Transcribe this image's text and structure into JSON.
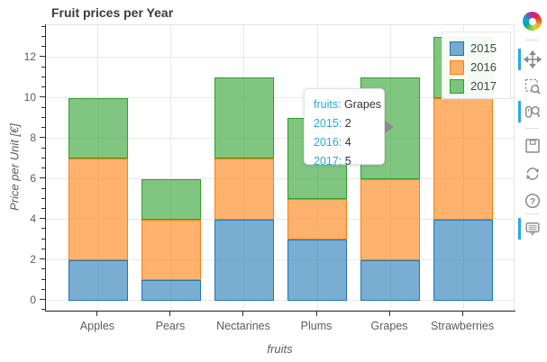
{
  "title": "Fruit prices per Year",
  "chart_data": {
    "type": "bar",
    "stacked": true,
    "title": "Fruit prices per Year",
    "xlabel": "fruits",
    "ylabel": "Price per Unit [€]",
    "categories": [
      "Apples",
      "Pears",
      "Nectarines",
      "Plums",
      "Grapes",
      "Strawberries"
    ],
    "series": [
      {
        "name": "2015",
        "values": [
          2,
          1,
          4,
          3,
          2,
          4
        ],
        "fill": "rgba(31,119,180,0.6)",
        "line": "#1f77b4"
      },
      {
        "name": "2016",
        "values": [
          5,
          3,
          3,
          2,
          4,
          6
        ],
        "fill": "rgba(255,127,14,0.6)",
        "line": "#ff7f0e"
      },
      {
        "name": "2017",
        "values": [
          3,
          2,
          4,
          4,
          5,
          3
        ],
        "fill": "rgba(44,160,44,0.6)",
        "line": "#2ca02c"
      }
    ],
    "ylim": [
      -0.55,
      13.6
    ],
    "ytick_step": 2,
    "yminor_step": 0.5,
    "yticks": [
      0,
      2,
      4,
      6,
      8,
      10,
      12
    ],
    "grid": true,
    "legend_position": "top_right",
    "bar_width": 0.82,
    "x_edge_pad": 0.715
  },
  "tooltip": {
    "rows": [
      {
        "label": "fruits:",
        "value": "Grapes"
      },
      {
        "label": "2015:",
        "value": "2"
      },
      {
        "label": "2016:",
        "value": "4"
      },
      {
        "label": "2017:",
        "value": "5"
      }
    ],
    "label_color": "#26aae1"
  },
  "toolbar": {
    "logo": "Bokeh",
    "tools": [
      {
        "name": "pan",
        "active": true
      },
      {
        "name": "box-zoom",
        "active": false
      },
      {
        "name": "wheel-zoom",
        "active": true
      },
      {
        "name": "save",
        "active": false
      },
      {
        "name": "reset",
        "active": false
      },
      {
        "name": "help",
        "active": false
      },
      {
        "name": "hover",
        "active": true
      }
    ]
  },
  "colors": {
    "accent": "#26aae1",
    "axis": "#303030",
    "grid": "#e9e9e9",
    "text": "#5c5c5c"
  }
}
